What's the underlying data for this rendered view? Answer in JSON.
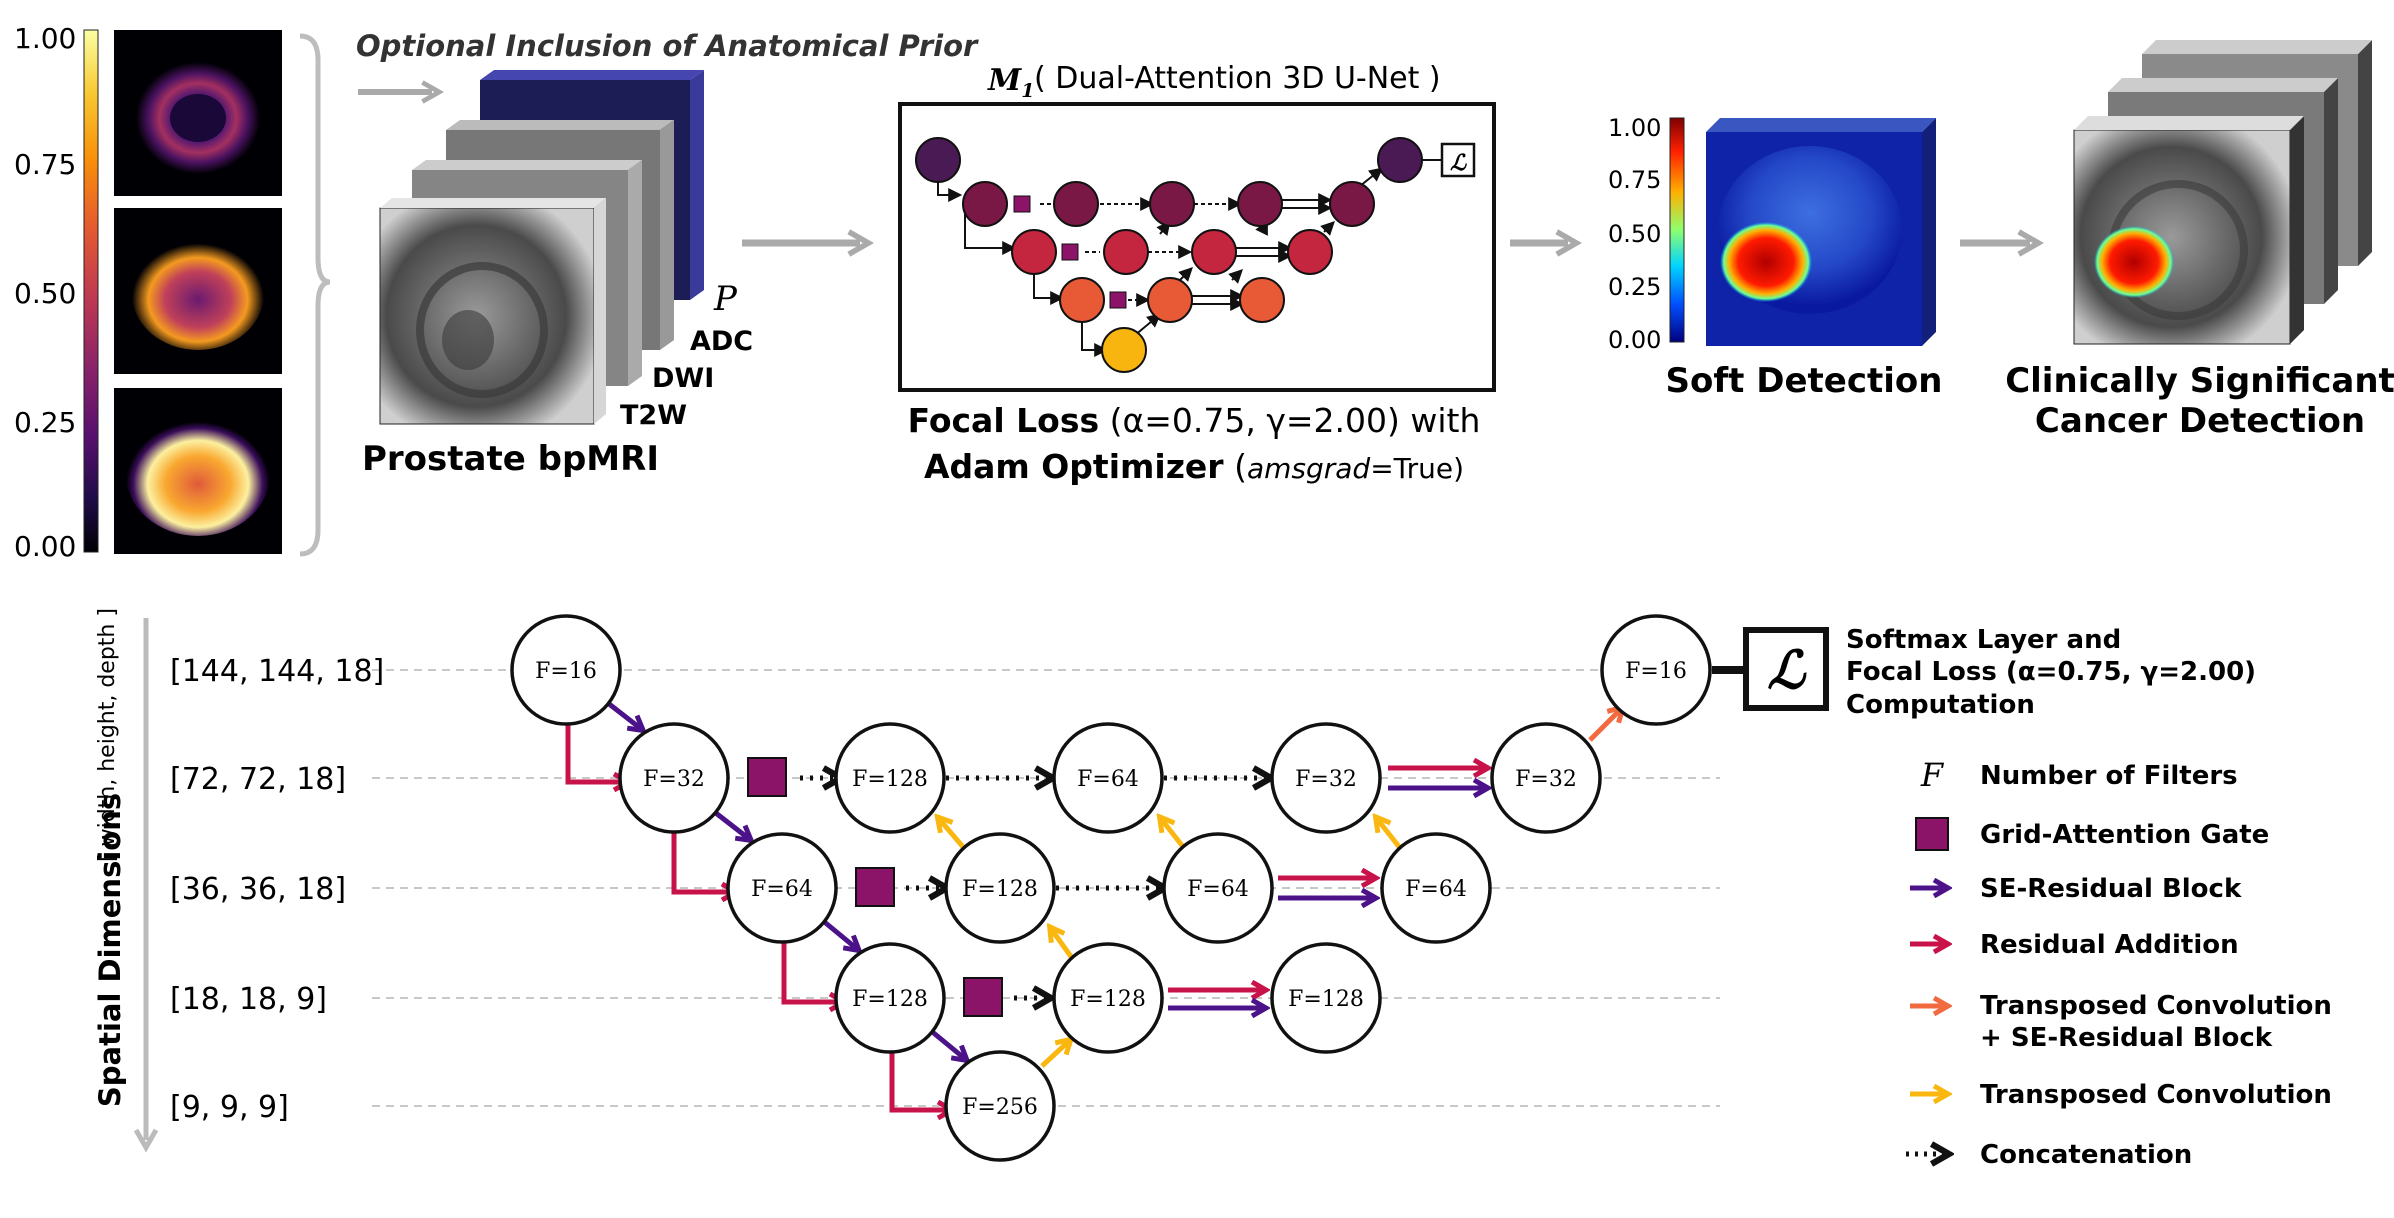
{
  "colorbar": {
    "ticks": [
      "1.00",
      "0.75",
      "0.50",
      "0.25",
      "0.00"
    ],
    "colors": [
      "#fcffa4",
      "#f8c932",
      "#f98e09",
      "#e45a31",
      "#bc3754",
      "#89226a",
      "#57106e",
      "#1f0c48",
      "#000004"
    ]
  },
  "top": {
    "prior_caption": "Optional Inclusion of Anatomical Prior",
    "stack_labels": [
      "P",
      "ADC",
      "DWI",
      "T2W"
    ],
    "input_caption": "Prostate bpMRI",
    "model_title_sym": "M",
    "model_title_sub": "1",
    "model_title_text": "( Dual-Attention 3D U-Net )",
    "loss_symbol": "ℒ",
    "focal_line_bold": "Focal Loss",
    "focal_line_rest": " (α=0.75, γ=2.00) with",
    "adam_line_bold": "Adam Optimizer",
    "adam_line_open": " (",
    "adam_line_italic": "amsgrad",
    "adam_line_rest": "=True)",
    "soft_caption": "Soft Detection",
    "soft_colorbar_ticks": [
      "1.00",
      "0.75",
      "0.50",
      "0.25",
      "0.00"
    ],
    "soft_colors": [
      "#7f0000",
      "#ff2000",
      "#ffb000",
      "#8fff6f",
      "#00d4ff",
      "#0050ff",
      "#00007f"
    ],
    "final_caption_1": "Clinically Significant",
    "final_caption_2": "Cancer Detection"
  },
  "bottom": {
    "axis_title": "Spatial Dimensions",
    "axis_subtitle": "[ width, height, depth ]",
    "rows": [
      "[144, 144, 18]",
      "[72, 72, 18]",
      "[36, 36, 18]",
      "[18, 18, 9]",
      "[9, 9, 9]"
    ],
    "nodes": [
      {
        "id": "e1",
        "label": "F=16"
      },
      {
        "id": "e2",
        "label": "F=32"
      },
      {
        "id": "e3",
        "label": "F=64"
      },
      {
        "id": "e4",
        "label": "F=128"
      },
      {
        "id": "bt",
        "label": "F=256"
      },
      {
        "id": "a3",
        "label": "F=128"
      },
      {
        "id": "a2",
        "label": "F=128"
      },
      {
        "id": "a1",
        "label": "F=128"
      },
      {
        "id": "d3",
        "label": "F=128"
      },
      {
        "id": "b2",
        "label": "F=64"
      },
      {
        "id": "d2",
        "label": "F=64"
      },
      {
        "id": "c1",
        "label": "F=64"
      },
      {
        "id": "d1",
        "label": "F=32"
      },
      {
        "id": "d0",
        "label": "F=32"
      },
      {
        "id": "out",
        "label": "F=16"
      }
    ],
    "loss_symbol": "ℒ",
    "softmax_line1": "Softmax Layer and",
    "softmax_line2": "Focal Loss (α=0.75, γ=2.00)",
    "softmax_line3": "Computation"
  },
  "legend": [
    {
      "key": "filters",
      "symbol": "F",
      "label": "Number of Filters"
    },
    {
      "key": "gate",
      "label": "Grid-Attention Gate",
      "color": "#8b1368"
    },
    {
      "key": "se",
      "label": "SE-Residual Block",
      "color": "#4b1289"
    },
    {
      "key": "res",
      "label": "Residual Addition",
      "color": "#c8134a"
    },
    {
      "key": "tconv_se",
      "label": "Transposed Convolution",
      "label2": "+ SE-Residual Block",
      "color": "#f26a3f"
    },
    {
      "key": "tconv",
      "label": "Transposed Convolution",
      "color": "#f9b70f"
    },
    {
      "key": "concat",
      "label": "Concatenation",
      "color": "#111111"
    }
  ]
}
